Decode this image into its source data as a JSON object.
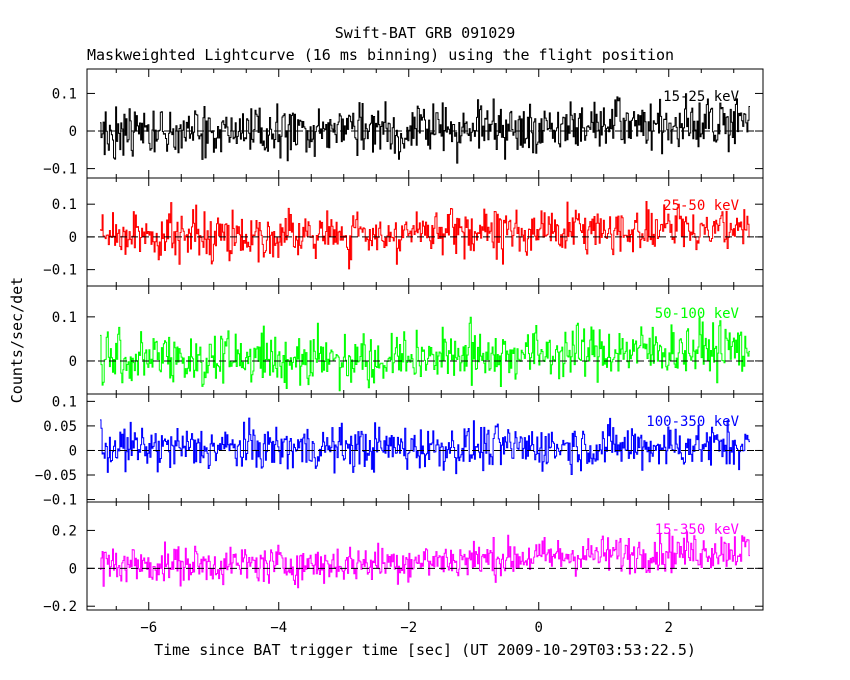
{
  "title": "Swift-BAT GRB 091029",
  "subtitle": "Maskweighted Lightcurve (16 ms binning) using the flight position",
  "chart_data": {
    "type": "line",
    "xlabel": "Time since BAT trigger time [sec] (UT 2009-10-29T03:53:22.5)",
    "ylabel": "Counts/sec/det",
    "xlim": [
      -6.95,
      3.45
    ],
    "x_data_range": [
      -6.75,
      3.25
    ],
    "bin_size_s": 0.016,
    "xticks": [
      -6,
      -4,
      -2,
      0,
      2
    ],
    "grid": false,
    "zero_line": "dashed",
    "panels": [
      {
        "label": "15-25 keV",
        "color": "#000000",
        "ylim": [
          -0.125,
          0.165
        ],
        "yticks": [
          -0.1,
          0,
          0.1
        ],
        "ytick_labels": [
          "−0.1",
          "0",
          "0.1"
        ],
        "mean_early": 0.0,
        "mean_late": 0.02,
        "noise_sigma": 0.048
      },
      {
        "label": "25-50 keV",
        "color": "#ff0000",
        "ylim": [
          -0.15,
          0.18
        ],
        "yticks": [
          -0.1,
          0,
          0.1
        ],
        "ytick_labels": [
          "−0.1",
          "0",
          "0.1"
        ],
        "mean_early": 0.005,
        "mean_late": 0.03,
        "noise_sigma": 0.05
      },
      {
        "label": "50-100 keV",
        "color": "#00ff00",
        "ylim": [
          -0.075,
          0.17
        ],
        "yticks": [
          0,
          0.1
        ],
        "ytick_labels": [
          "0",
          "0.1"
        ],
        "mean_early": 0.005,
        "mean_late": 0.03,
        "noise_sigma": 0.042
      },
      {
        "label": "100-350 keV",
        "color": "#0000ff",
        "ylim": [
          -0.105,
          0.115
        ],
        "yticks": [
          -0.1,
          -0.05,
          0,
          0.05,
          0.1
        ],
        "ytick_labels": [
          "−0.1",
          "−0.05",
          "0",
          "0.05",
          "0.1"
        ],
        "mean_early": 0.005,
        "mean_late": 0.01,
        "noise_sigma": 0.032
      },
      {
        "label": "15-350 keV",
        "color": "#ff00ff",
        "ylim": [
          -0.22,
          0.35
        ],
        "yticks": [
          -0.2,
          0,
          0.2
        ],
        "ytick_labels": [
          "−0.2",
          "0",
          "0.2"
        ],
        "mean_early": 0.02,
        "mean_late": 0.1,
        "noise_sigma": 0.07
      }
    ]
  }
}
